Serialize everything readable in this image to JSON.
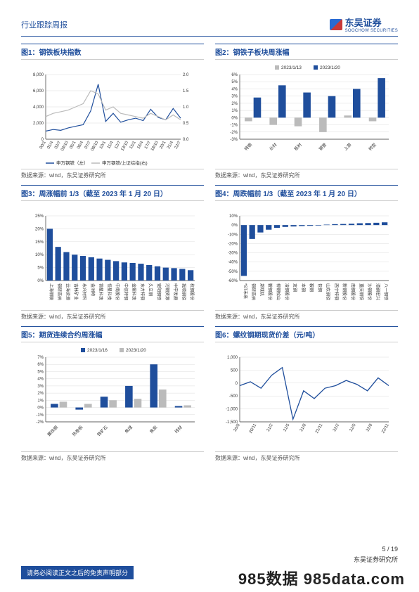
{
  "header": {
    "report_type": "行业跟踪周报",
    "logo_cn": "东吴证券",
    "logo_en": "SOOCHOW SECURITIES"
  },
  "charts": [
    {
      "title": "图1：钢铁板块指数",
      "type": "line-dual-axis",
      "source": "数据来源：wind，东吴证券研究所",
      "x_labels": [
        "00/1",
        "01/4",
        "02/7",
        "03/10",
        "05/1",
        "06/4",
        "07/7",
        "08/10",
        "10/1",
        "11/4",
        "12/7",
        "13/10",
        "15/1",
        "16/4",
        "17/7",
        "18/10",
        "20/1",
        "21/4",
        "22/7"
      ],
      "y_left": {
        "min": 0,
        "max": 8000,
        "step": 2000
      },
      "y_right": {
        "min": 0,
        "max": 2.0,
        "step": 0.5
      },
      "series": [
        {
          "name": "申万钢铁（左）",
          "color": "#1f4e9c",
          "axis": "left",
          "values": [
            1000,
            1200,
            1100,
            1400,
            1600,
            1800,
            3500,
            6800,
            2200,
            3200,
            2100,
            2400,
            2600,
            2300,
            3700,
            2700,
            2400,
            3800,
            2600
          ]
        },
        {
          "name": "申万钢铁/上证综指(右)",
          "color": "#bbbbbb",
          "axis": "right",
          "values": [
            0.7,
            0.8,
            0.85,
            0.9,
            1.0,
            1.1,
            1.5,
            1.4,
            0.9,
            1.0,
            0.8,
            0.75,
            0.7,
            0.65,
            0.8,
            0.7,
            0.6,
            0.75,
            0.6
          ]
        }
      ]
    },
    {
      "title": "图2：钢铁子板块周涨幅",
      "type": "grouped-bar",
      "source": "数据来源：wind，东吴证券研究所",
      "legend": [
        {
          "name": "2023/1/13",
          "color": "#bbbbbb"
        },
        {
          "name": "2023/1/20",
          "color": "#1f4e9c"
        }
      ],
      "y": {
        "min": -3,
        "max": 6,
        "step": 1,
        "suffix": "%"
      },
      "categories": [
        "特钢",
        "长材",
        "板材",
        "钢管",
        "上游",
        "转型"
      ],
      "series": [
        {
          "color": "#bbbbbb",
          "values": [
            -0.5,
            -1.0,
            -1.2,
            -2.0,
            0.3,
            -0.5
          ]
        },
        {
          "color": "#1f4e9c",
          "values": [
            2.8,
            4.5,
            3.5,
            3.0,
            4.0,
            5.5
          ]
        }
      ]
    },
    {
      "title": "图3：周涨幅前 1/3（截至 2023 年 1 月 20 日）",
      "type": "bar",
      "source": "数据来源：wind，东吴证券研究所",
      "y": {
        "min": 0,
        "max": 25,
        "step": 5,
        "suffix": "%"
      },
      "bar_color": "#1f4e9c",
      "categories": [
        "上海钢联",
        "钢研高纳",
        "云海资源",
        "吉林矿业",
        "永兴材料",
        "金洲物",
        "锦星科技",
        "恒星科技",
        "中南股份",
        "中信特钢",
        "金紫科技",
        "东方特钢",
        "久立钢",
        "安阳钢铁",
        "河钢资源",
        "中宇发展",
        "抚顺钢铁",
        "杭钢股份"
      ],
      "values": [
        20,
        13,
        11,
        10,
        9.5,
        9,
        8.5,
        8,
        7.5,
        7,
        6.8,
        6.5,
        6,
        5.5,
        5,
        4.8,
        4.5,
        4
      ]
    },
    {
      "title": "图4：周跌幅前 1/3（截至 2023 年 1 月 20 日）",
      "type": "bar",
      "source": "数据来源：wind，东吴证券研究所",
      "y": {
        "min": -60,
        "max": 10,
        "step": 10,
        "suffix": "%"
      },
      "bar_color": "#1f4e9c",
      "categories": [
        "*ST未来",
        "钢研高纳",
        "郑煤机",
        "鞍钢股份",
        "柳钢松山",
        "凌钢股份",
        "友钢",
        "本钢",
        "鞍钢",
        "包钢",
        "山东钢铁",
        "西宁特钢",
        "新钢股份",
        "南钢股份",
        "重庆钢铁",
        "沙钢股份",
        "酒钢宏兴",
        "八一钢铁"
      ],
      "values": [
        -55,
        -15,
        -8,
        -5,
        -3,
        -2,
        -1.5,
        -1,
        -0.8,
        -0.5,
        0.5,
        1,
        1.2,
        1.5,
        2,
        2.2,
        2.5,
        3
      ]
    },
    {
      "title": "图5：期货连续合约周涨幅",
      "type": "grouped-bar",
      "source": "数据来源：wind，东吴证券研究所",
      "legend": [
        {
          "name": "2023/1/16",
          "color": "#1f4e9c"
        },
        {
          "name": "2023/1/20",
          "color": "#bbbbbb"
        }
      ],
      "y": {
        "min": -2,
        "max": 7,
        "step": 1,
        "suffix": "%"
      },
      "categories": [
        "螺纹钢",
        "热卷板",
        "铁矿石",
        "焦煤",
        "焦炭",
        "线材"
      ],
      "series": [
        {
          "color": "#1f4e9c",
          "values": [
            0.5,
            -0.3,
            1.5,
            3.0,
            6.0,
            0.2
          ]
        },
        {
          "color": "#bbbbbb",
          "values": [
            0.8,
            0.5,
            1.0,
            1.2,
            2.5,
            0.3
          ]
        }
      ]
    },
    {
      "title": "图6：螺纹钢期现货价差（元/吨）",
      "type": "line",
      "source": "数据来源：wind，东吴证券研究所",
      "line_color": "#1f4e9c",
      "y": {
        "min": -1500,
        "max": 1000,
        "step": 500
      },
      "x_labels": [
        "20/8",
        "20/11",
        "21/2",
        "21/5",
        "21/8",
        "21/11",
        "22/2",
        "22/5",
        "22/8",
        "22/11"
      ],
      "values": [
        -100,
        50,
        -200,
        300,
        600,
        -1400,
        -300,
        -600,
        -200,
        -100,
        100,
        -50,
        -300,
        200,
        -100
      ]
    }
  ],
  "footer": {
    "disclaimer": "请务必阅读正文之后的免责声明部分",
    "firm": "东吴证券研究所",
    "page_current": "5",
    "page_total": "19",
    "watermark": "985数据 985data.com"
  }
}
